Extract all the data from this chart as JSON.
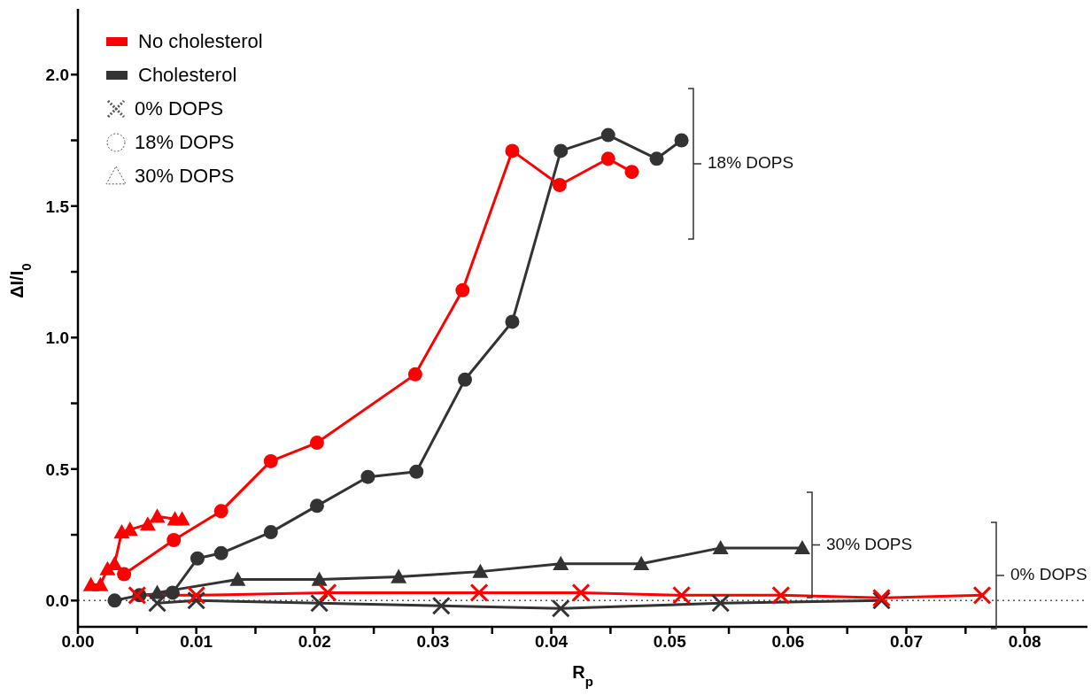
{
  "chart_data": {
    "type": "line",
    "xlabel": "R$_{p}$",
    "ylabel": "ΔI/I$_{0}$",
    "xlim": [
      0,
      0.0853
    ],
    "ylim": [
      -0.1,
      2.25
    ],
    "xticks": [
      {
        "value": 0,
        "label": "0.00"
      },
      {
        "value": 0.005,
        "label": null
      },
      {
        "value": 0.01,
        "label": "0.01"
      },
      {
        "value": 0.015,
        "label": null
      },
      {
        "value": 0.02,
        "label": "0.02"
      },
      {
        "value": 0.025,
        "label": null
      },
      {
        "value": 0.03,
        "label": "0.03"
      },
      {
        "value": 0.035,
        "label": null
      },
      {
        "value": 0.04,
        "label": "0.04"
      },
      {
        "value": 0.045,
        "label": null
      },
      {
        "value": 0.05,
        "label": "0.05"
      },
      {
        "value": 0.055,
        "label": null
      },
      {
        "value": 0.06,
        "label": "0.06"
      },
      {
        "value": 0.065,
        "label": null
      },
      {
        "value": 0.07,
        "label": "0.07"
      },
      {
        "value": 0.075,
        "label": null
      },
      {
        "value": 0.08,
        "label": "0.08"
      }
    ],
    "yticks": [
      {
        "value": 0,
        "label": "0.0"
      },
      {
        "value": 0.25,
        "label": null
      },
      {
        "value": 0.5,
        "label": "0.5"
      },
      {
        "value": 0.75,
        "label": null
      },
      {
        "value": 1,
        "label": "1.0"
      },
      {
        "value": 1.25,
        "label": null
      },
      {
        "value": 1.5,
        "label": "1.5"
      },
      {
        "value": 1.75,
        "label": null
      },
      {
        "value": 2,
        "label": "2.0"
      }
    ],
    "ref_lines": [
      {
        "axis": "y",
        "value": 0,
        "label": null,
        "color": "#555555",
        "line_style": "dotted"
      }
    ],
    "annotations": [
      "No cholesterol",
      "Cholesterol",
      "0% DOPS",
      "18% DOPS",
      "30% DOPS",
      "18% DOPS",
      "30% DOPS",
      "0% DOPS"
    ],
    "series": [
      {
        "color": "#ff0000",
        "marker": "cross",
        "x": [
          0.005,
          0.01,
          0.0211,
          0.0339,
          0.0425,
          0.051,
          0.0594,
          0.0679,
          0.0764
        ],
        "values": [
          0.02,
          0.02,
          0.03,
          0.03,
          0.03,
          0.02,
          0.02,
          0.01,
          0.02
        ]
      },
      {
        "color": "#333333",
        "marker": "cross",
        "x": [
          0.0067,
          0.01,
          0.0204,
          0.0307,
          0.0408,
          0.0543,
          0.0679
        ],
        "values": [
          -0.01,
          0.0,
          -0.01,
          -0.02,
          -0.03,
          -0.01,
          0.0
        ]
      },
      {
        "color": "#ff0000",
        "marker": "circle",
        "x": [
          0.0039,
          0.0081,
          0.0121,
          0.0163,
          0.0202,
          0.0285,
          0.0325,
          0.0367,
          0.0407,
          0.0448,
          0.0468
        ],
        "values": [
          0.1,
          0.23,
          0.34,
          0.53,
          0.6,
          0.86,
          1.18,
          1.71,
          1.58,
          1.68,
          1.63
        ]
      },
      {
        "color": "#333333",
        "marker": "circle",
        "x": [
          0.0031,
          0.0052,
          0.008,
          0.0101,
          0.0121,
          0.0163,
          0.0202,
          0.0245,
          0.0286,
          0.0327,
          0.0367,
          0.0408,
          0.0448,
          0.0489,
          0.051
        ],
        "values": [
          0.0,
          0.02,
          0.03,
          0.16,
          0.18,
          0.26,
          0.36,
          0.47,
          0.49,
          0.84,
          1.06,
          1.71,
          1.77,
          1.68,
          1.75
        ]
      },
      {
        "color": "#ff0000",
        "marker": "triangle",
        "x": [
          0.0011,
          0.0019,
          0.0025,
          0.0031,
          0.0037,
          0.0044,
          0.0059,
          0.0067,
          0.0082,
          0.0088
        ],
        "values": [
          0.06,
          0.06,
          0.12,
          0.14,
          0.26,
          0.27,
          0.29,
          0.32,
          0.31,
          0.31
        ]
      },
      {
        "color": "#333333",
        "marker": "triangle",
        "x": [
          0.0067,
          0.0135,
          0.0204,
          0.0271,
          0.034,
          0.0408,
          0.0476,
          0.0543,
          0.0612
        ],
        "values": [
          0.03,
          0.08,
          0.08,
          0.09,
          0.11,
          0.14,
          0.14,
          0.2,
          0.2
        ]
      }
    ]
  }
}
